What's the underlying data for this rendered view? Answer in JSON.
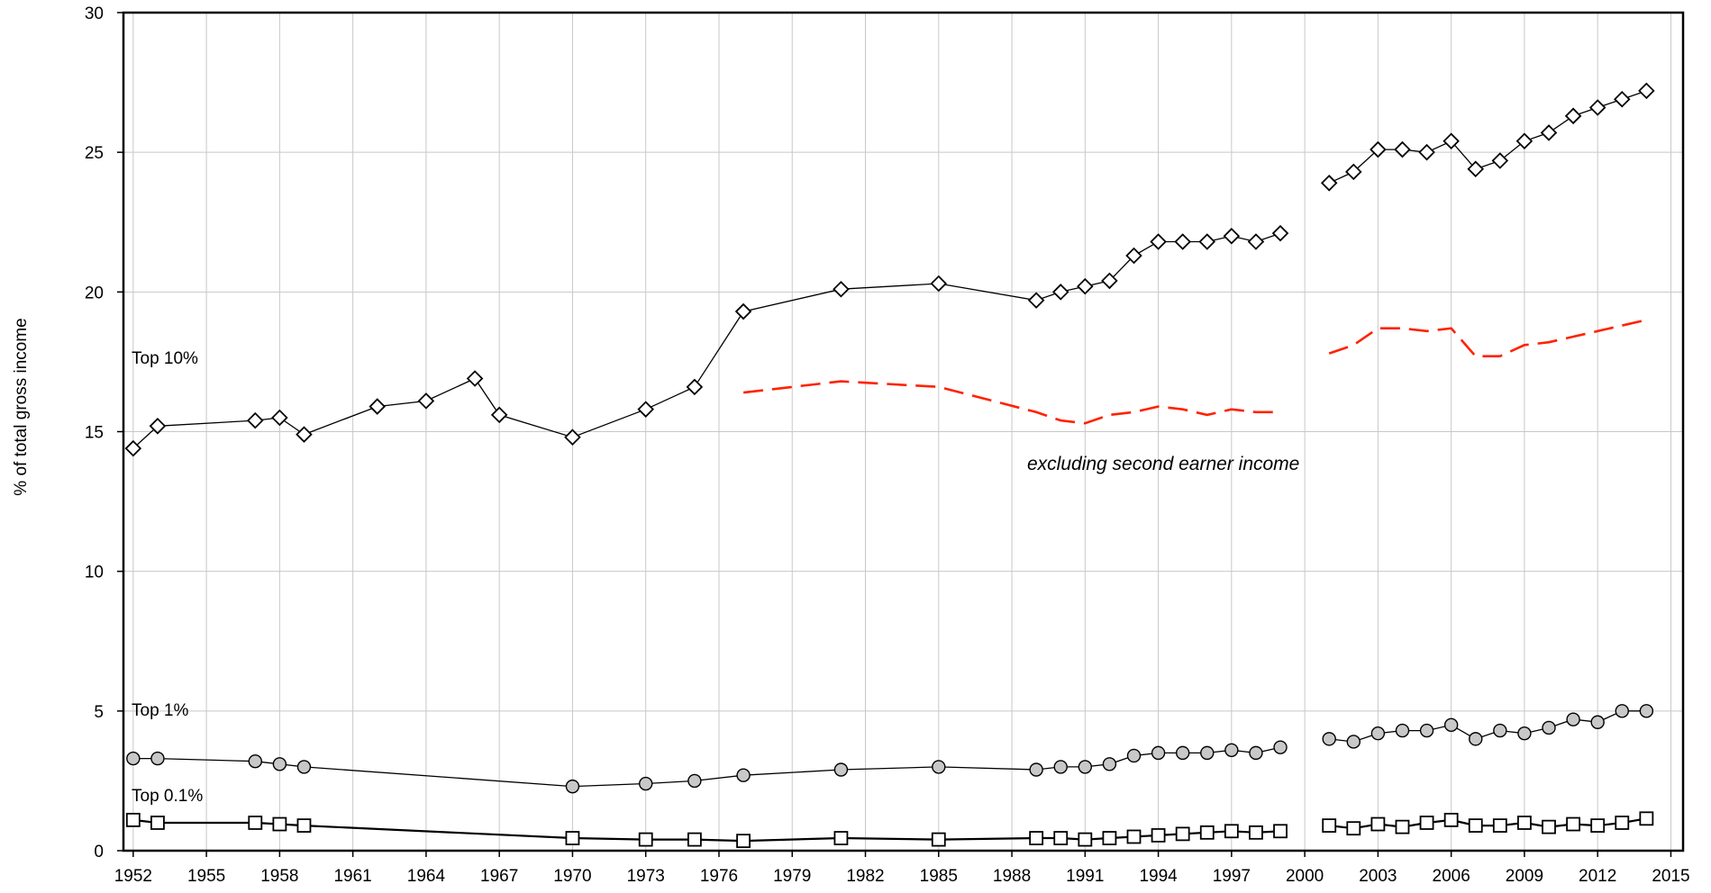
{
  "chart_data": {
    "type": "line",
    "xlabel": "",
    "ylabel": "% of total gross income",
    "xlim": [
      1951.6,
      2015.5
    ],
    "ylim": [
      0,
      30
    ],
    "xticks": [
      1952,
      1955,
      1958,
      1961,
      1964,
      1967,
      1970,
      1973,
      1976,
      1979,
      1982,
      1985,
      1988,
      1991,
      1994,
      1997,
      2000,
      2003,
      2006,
      2009,
      2012,
      2015
    ],
    "yticks": [
      0,
      5,
      10,
      15,
      20,
      25,
      30
    ],
    "grid": true,
    "series": [
      {
        "name": "Top 10%",
        "marker": "diamond",
        "color": "#000000",
        "segments": [
          {
            "x": [
              1952,
              1953,
              1957,
              1958,
              1959,
              1962,
              1964,
              1966,
              1967,
              1970,
              1973,
              1975,
              1977,
              1981,
              1985,
              1989,
              1990,
              1991,
              1992,
              1993,
              1994,
              1995,
              1996,
              1997,
              1998,
              1999
            ],
            "y": [
              14.4,
              15.2,
              15.4,
              15.5,
              14.9,
              15.9,
              16.1,
              16.9,
              15.6,
              14.8,
              15.8,
              16.6,
              19.3,
              20.1,
              20.3,
              19.7,
              20.0,
              20.2,
              20.4,
              21.3,
              21.8,
              21.8,
              21.8,
              22.0,
              21.8,
              22.1
            ]
          },
          {
            "x": [
              2001,
              2002,
              2003,
              2004,
              2005,
              2006,
              2007,
              2008,
              2009,
              2010,
              2011,
              2012,
              2013,
              2014
            ],
            "y": [
              23.9,
              24.3,
              25.1,
              25.1,
              25.0,
              25.4,
              24.4,
              24.7,
              25.4,
              25.7,
              26.3,
              26.6,
              26.9,
              27.2
            ]
          }
        ]
      },
      {
        "name": "Top 1%",
        "marker": "circle",
        "color": "#000000",
        "segments": [
          {
            "x": [
              1952,
              1953,
              1957,
              1958,
              1959,
              1970,
              1973,
              1975,
              1977,
              1981,
              1985,
              1989,
              1990,
              1991,
              1992,
              1993,
              1994,
              1995,
              1996,
              1997,
              1998,
              1999
            ],
            "y": [
              3.3,
              3.3,
              3.2,
              3.1,
              3.0,
              2.3,
              2.4,
              2.5,
              2.7,
              2.9,
              3.0,
              2.9,
              3.0,
              3.0,
              3.1,
              3.4,
              3.5,
              3.5,
              3.5,
              3.6,
              3.5,
              3.7
            ]
          },
          {
            "x": [
              2001,
              2002,
              2003,
              2004,
              2005,
              2006,
              2007,
              2008,
              2009,
              2010,
              2011,
              2012,
              2013,
              2014
            ],
            "y": [
              4.0,
              3.9,
              4.2,
              4.3,
              4.3,
              4.5,
              4.0,
              4.3,
              4.2,
              4.4,
              4.7,
              4.6,
              5.0,
              5.0
            ]
          }
        ]
      },
      {
        "name": "Top 0.1%",
        "marker": "square",
        "color": "#000000",
        "segments": [
          {
            "x": [
              1952,
              1953,
              1957,
              1958,
              1959,
              1970,
              1973,
              1975,
              1977,
              1981,
              1985,
              1989,
              1990,
              1991,
              1992,
              1993,
              1994,
              1995,
              1996,
              1997,
              1998,
              1999
            ],
            "y": [
              1.1,
              1.0,
              1.0,
              0.95,
              0.9,
              0.45,
              0.4,
              0.4,
              0.35,
              0.45,
              0.4,
              0.45,
              0.45,
              0.4,
              0.45,
              0.5,
              0.55,
              0.6,
              0.65,
              0.7,
              0.65,
              0.7
            ]
          },
          {
            "x": [
              2001,
              2002,
              2003,
              2004,
              2005,
              2006,
              2007,
              2008,
              2009,
              2010,
              2011,
              2012,
              2013,
              2014
            ],
            "y": [
              0.9,
              0.8,
              0.95,
              0.85,
              1.0,
              1.1,
              0.9,
              0.9,
              1.0,
              0.85,
              0.95,
              0.9,
              1.0,
              1.15
            ]
          }
        ]
      },
      {
        "name": "excluding second earner income",
        "marker": "none",
        "dash": true,
        "color": "#ff2200",
        "segments": [
          {
            "x": [
              1977,
              1981,
              1985,
              1989,
              1990,
              1991,
              1992,
              1993,
              1994,
              1995,
              1996,
              1997,
              1998,
              1999
            ],
            "y": [
              16.4,
              16.8,
              16.6,
              15.7,
              15.4,
              15.3,
              15.6,
              15.7,
              15.9,
              15.8,
              15.6,
              15.8,
              15.7,
              15.7
            ]
          },
          {
            "x": [
              2001,
              2002,
              2003,
              2004,
              2005,
              2006,
              2007,
              2008,
              2009,
              2010,
              2011,
              2012,
              2013,
              2014
            ],
            "y": [
              17.8,
              18.1,
              18.7,
              18.7,
              18.6,
              18.7,
              17.7,
              17.7,
              18.1,
              18.2,
              18.4,
              18.6,
              18.8,
              19.0
            ]
          }
        ]
      }
    ],
    "labels": {
      "top10": "Top 10%",
      "top1": "Top 1%",
      "top01": "Top 0.1%",
      "annotation": "excluding second earner income"
    }
  }
}
